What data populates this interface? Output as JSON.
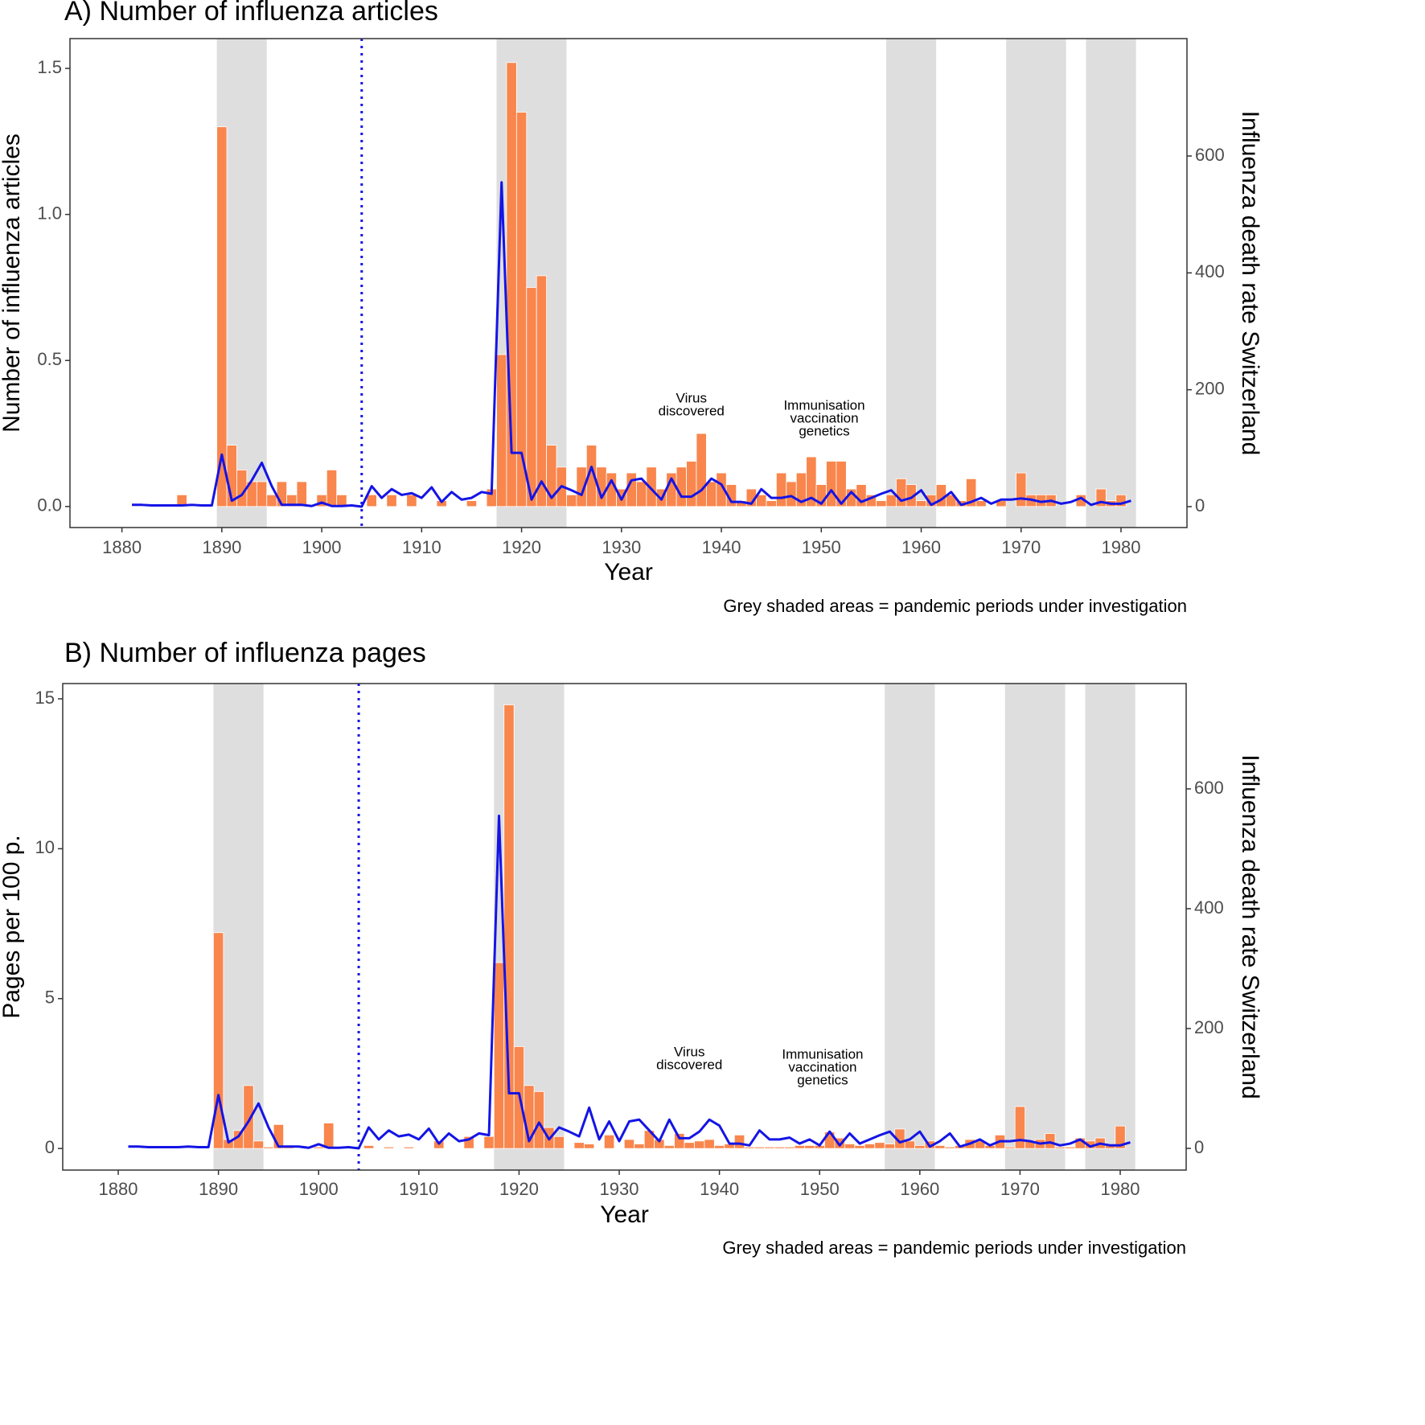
{
  "chart_data": [
    {
      "type": "combo",
      "title": "A) Number of influenza articles",
      "x_label": "Year",
      "y_label": "Number of influenza articles",
      "y2_label": "Influenza death rate Switzerland",
      "caption": "Grey shaded areas = pandemic periods under investigation",
      "x": [
        1881,
        1882,
        1883,
        1884,
        1885,
        1886,
        1887,
        1888,
        1889,
        1890,
        1891,
        1892,
        1893,
        1894,
        1895,
        1896,
        1897,
        1898,
        1899,
        1900,
        1901,
        1902,
        1903,
        1904,
        1905,
        1906,
        1907,
        1908,
        1909,
        1910,
        1911,
        1912,
        1913,
        1914,
        1915,
        1916,
        1917,
        1918,
        1919,
        1920,
        1921,
        1922,
        1923,
        1924,
        1925,
        1926,
        1927,
        1928,
        1929,
        1930,
        1931,
        1932,
        1933,
        1934,
        1935,
        1936,
        1937,
        1938,
        1939,
        1940,
        1941,
        1942,
        1943,
        1944,
        1945,
        1946,
        1947,
        1948,
        1949,
        1950,
        1951,
        1952,
        1953,
        1954,
        1955,
        1956,
        1957,
        1958,
        1959,
        1960,
        1961,
        1962,
        1963,
        1964,
        1965,
        1966,
        1967,
        1968,
        1969,
        1970,
        1971,
        1972,
        1973,
        1974,
        1975,
        1976,
        1977,
        1978,
        1979,
        1980,
        1981
      ],
      "series": [
        {
          "type": "bar",
          "color": "#f9864d",
          "values": [
            0,
            0,
            0,
            0,
            0,
            0.04,
            0,
            0,
            0,
            1.3,
            0.21,
            0.125,
            0.085,
            0.085,
            0.04,
            0.085,
            0.04,
            0.085,
            0,
            0.04,
            0.125,
            0.04,
            0,
            0,
            0.04,
            0,
            0.04,
            0,
            0.04,
            0,
            0,
            0.02,
            0,
            0,
            0.02,
            0,
            0.06,
            0.52,
            1.52,
            1.35,
            0.75,
            0.79,
            0.21,
            0.135,
            0.04,
            0.135,
            0.21,
            0.135,
            0.115,
            0.06,
            0.115,
            0.085,
            0.135,
            0.06,
            0.115,
            0.135,
            0.155,
            0.25,
            0.085,
            0.115,
            0.075,
            0.02,
            0.06,
            0.04,
            0.02,
            0.115,
            0.085,
            0.115,
            0.17,
            0.075,
            0.155,
            0.155,
            0.06,
            0.075,
            0.04,
            0.02,
            0.04,
            0.095,
            0.075,
            0.02,
            0.04,
            0.075,
            0.04,
            0.02,
            0.095,
            0.02,
            0,
            0.02,
            0,
            0.115,
            0.04,
            0.04,
            0.04,
            0,
            0,
            0.04,
            0,
            0.06,
            0.02,
            0.04,
            null
          ]
        },
        {
          "type": "line",
          "color": "#1414e6",
          "axis": "y2",
          "values": [
            3,
            3,
            2,
            2,
            2,
            2,
            3,
            2,
            2,
            89,
            10,
            20,
            45,
            75,
            35,
            3,
            3,
            3,
            1,
            7,
            1,
            1,
            2,
            0,
            35,
            15,
            30,
            20,
            23,
            15,
            33,
            8,
            25,
            12,
            15,
            25,
            22,
            555,
            92,
            92,
            12,
            43,
            15,
            35,
            28,
            20,
            68,
            15,
            45,
            12,
            45,
            48,
            30,
            12,
            48,
            17,
            17,
            28,
            48,
            38,
            8,
            8,
            5,
            30,
            15,
            15,
            18,
            8,
            15,
            5,
            28,
            5,
            25,
            8,
            15,
            22,
            28,
            10,
            15,
            28,
            3,
            12,
            25,
            3,
            8,
            15,
            5,
            12,
            12,
            14,
            12,
            8,
            10,
            5,
            8,
            15,
            3,
            8,
            5,
            5,
            10
          ]
        }
      ],
      "xlim": [
        1874.8,
        1986.6
      ],
      "xticks": [
        1880,
        1890,
        1900,
        1910,
        1920,
        1930,
        1940,
        1950,
        1960,
        1970,
        1980
      ],
      "ylim": [
        -0.072,
        1.602
      ],
      "yticks": [
        {
          "value": 0,
          "label": "0.0"
        },
        0.5,
        {
          "value": 1,
          "label": "1.0"
        },
        1.5
      ],
      "y2lim": [
        -35.8,
        800.9
      ],
      "y2ticks": [
        0,
        200,
        400,
        600
      ],
      "shaded_periods": [
        [
          1889.5,
          1894.5
        ],
        [
          1917.5,
          1924.5
        ],
        [
          1956.5,
          1961.5
        ],
        [
          1968.5,
          1974.5
        ],
        [
          1976.5,
          1981.5
        ]
      ],
      "shade_color": "#dedede",
      "vline": 1904,
      "vline_color": "#1414e6",
      "annotations": [
        {
          "text": [
            "Virus",
            "discovered"
          ],
          "x": 1937.0,
          "y": 0.347
        },
        {
          "text": [
            "Immunisation",
            "vaccination",
            "genetics"
          ],
          "x": 1950.3,
          "y": 0.3
        }
      ]
    },
    {
      "type": "combo",
      "title": "B) Number of influenza pages",
      "x_label": "Year",
      "y_label": "Pages per 100 p.",
      "y2_label": "Influenza death rate Switzerland",
      "caption": "Grey shaded areas = pandemic periods under investigation",
      "x": [
        1881,
        1882,
        1883,
        1884,
        1885,
        1886,
        1887,
        1888,
        1889,
        1890,
        1891,
        1892,
        1893,
        1894,
        1895,
        1896,
        1897,
        1898,
        1899,
        1900,
        1901,
        1902,
        1903,
        1904,
        1905,
        1906,
        1907,
        1908,
        1909,
        1910,
        1911,
        1912,
        1913,
        1914,
        1915,
        1916,
        1917,
        1918,
        1919,
        1920,
        1921,
        1922,
        1923,
        1924,
        1925,
        1926,
        1927,
        1928,
        1929,
        1930,
        1931,
        1932,
        1933,
        1934,
        1935,
        1936,
        1937,
        1938,
        1939,
        1940,
        1941,
        1942,
        1943,
        1944,
        1945,
        1946,
        1947,
        1948,
        1949,
        1950,
        1951,
        1952,
        1953,
        1954,
        1955,
        1956,
        1957,
        1958,
        1959,
        1960,
        1961,
        1962,
        1963,
        1964,
        1965,
        1966,
        1967,
        1968,
        1969,
        1970,
        1971,
        1972,
        1973,
        1974,
        1975,
        1976,
        1977,
        1978,
        1979,
        1980,
        1981
      ],
      "series": [
        {
          "type": "bar",
          "color": "#f9864d",
          "values": [
            0,
            0,
            0,
            0,
            0,
            0,
            0,
            0,
            0,
            7.2,
            0.3,
            0.6,
            2.1,
            0.25,
            0.05,
            0.8,
            0.05,
            0,
            0,
            0.05,
            0.85,
            0,
            0,
            0,
            0.1,
            0,
            0.05,
            0,
            0.05,
            0,
            0,
            0.25,
            0,
            0,
            0.4,
            0,
            0.4,
            6.2,
            14.8,
            3.4,
            2.1,
            1.9,
            0.7,
            0.4,
            0,
            0.2,
            0.15,
            0,
            0.45,
            0,
            0.3,
            0.15,
            0.6,
            0.3,
            0.1,
            0.5,
            0.2,
            0.25,
            0.3,
            0.1,
            0.15,
            0.45,
            0.05,
            0.05,
            0.05,
            0.05,
            0.05,
            0.1,
            0.1,
            0.1,
            0.55,
            0.35,
            0.15,
            0.1,
            0.15,
            0.2,
            0.15,
            0.65,
            0.25,
            0.1,
            0.25,
            0.1,
            0.05,
            0.1,
            0.3,
            0.25,
            0.1,
            0.45,
            0.05,
            1.4,
            0.25,
            0.3,
            0.5,
            0.05,
            0.05,
            0.35,
            0.25,
            0.35,
            0.1,
            0.75,
            null
          ]
        },
        {
          "type": "line",
          "color": "#1414e6",
          "axis": "y2",
          "values": [
            3,
            3,
            2,
            2,
            2,
            2,
            3,
            2,
            2,
            89,
            10,
            20,
            45,
            75,
            35,
            3,
            3,
            3,
            1,
            7,
            1,
            1,
            2,
            0,
            35,
            15,
            30,
            20,
            23,
            15,
            33,
            8,
            25,
            12,
            15,
            25,
            22,
            555,
            92,
            92,
            12,
            43,
            15,
            35,
            28,
            20,
            68,
            15,
            45,
            12,
            45,
            48,
            30,
            12,
            48,
            17,
            17,
            28,
            48,
            38,
            8,
            8,
            5,
            30,
            15,
            15,
            18,
            8,
            15,
            5,
            28,
            5,
            25,
            8,
            15,
            22,
            28,
            10,
            15,
            28,
            3,
            12,
            25,
            3,
            8,
            15,
            5,
            12,
            12,
            14,
            12,
            8,
            10,
            5,
            8,
            15,
            3,
            8,
            5,
            5,
            10
          ]
        }
      ],
      "xlim": [
        1874.46,
        1986.58
      ],
      "xticks": [
        1880,
        1890,
        1900,
        1910,
        1920,
        1930,
        1940,
        1950,
        1960,
        1970,
        1980
      ],
      "ylim": [
        -0.72,
        15.51
      ],
      "yticks": [
        0,
        5,
        10,
        15
      ],
      "y2lim": [
        -36.2,
        775.8
      ],
      "y2ticks": [
        0,
        200,
        400,
        600
      ],
      "shaded_periods": [
        [
          1889.5,
          1894.5
        ],
        [
          1917.5,
          1924.5
        ],
        [
          1956.5,
          1961.5
        ],
        [
          1968.5,
          1974.5
        ],
        [
          1976.5,
          1981.5
        ]
      ],
      "shade_color": "#dedede",
      "vline": 1904,
      "vline_color": "#1414e6",
      "annotations": [
        {
          "text": [
            "Virus",
            "discovered"
          ],
          "x": 1937.0,
          "y": 2.98
        },
        {
          "text": [
            "Immunisation",
            "vaccination",
            "genetics"
          ],
          "x": 1950.3,
          "y": 2.68
        }
      ]
    }
  ]
}
